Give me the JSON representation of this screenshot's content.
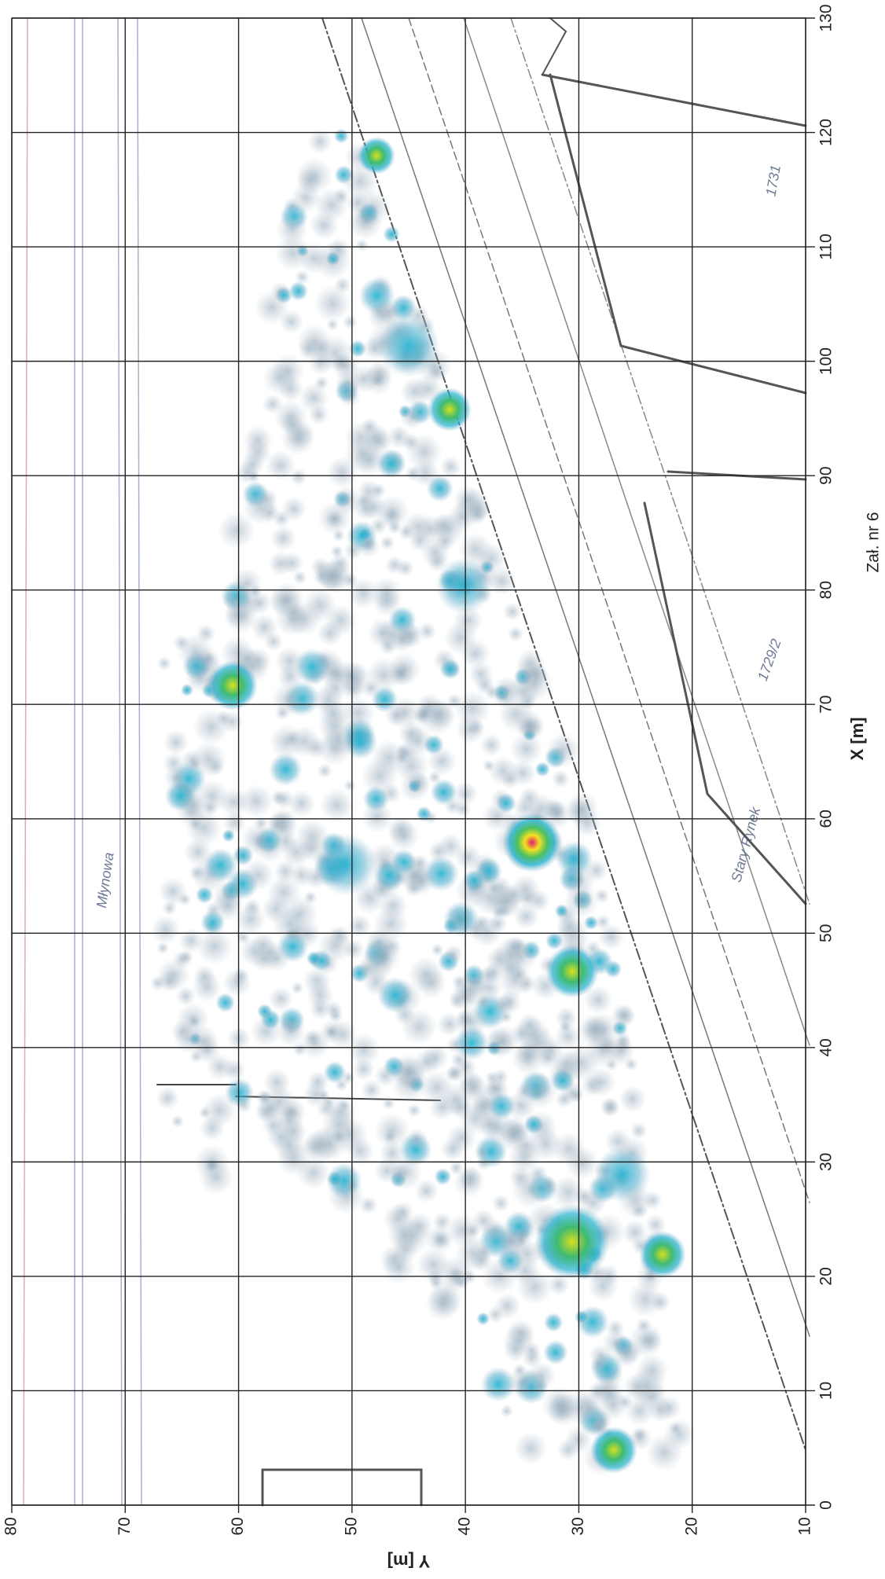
{
  "chart_data": {
    "type": "heatmap",
    "xlabel": "X [m]",
    "ylabel": "Y [m]",
    "note": "Zał. nr 6",
    "xlim": [
      0,
      130
    ],
    "xticks": [
      0,
      10,
      20,
      30,
      40,
      50,
      60,
      70,
      80,
      90,
      100,
      110,
      120,
      130
    ],
    "ylim": [
      80,
      10
    ],
    "yticks": [
      80,
      70,
      60,
      50,
      40,
      30,
      20,
      10
    ],
    "grid": true,
    "map_labels": [
      "Młynowa",
      "Stary Rynek",
      "1729/2",
      "1731"
    ]
  }
}
